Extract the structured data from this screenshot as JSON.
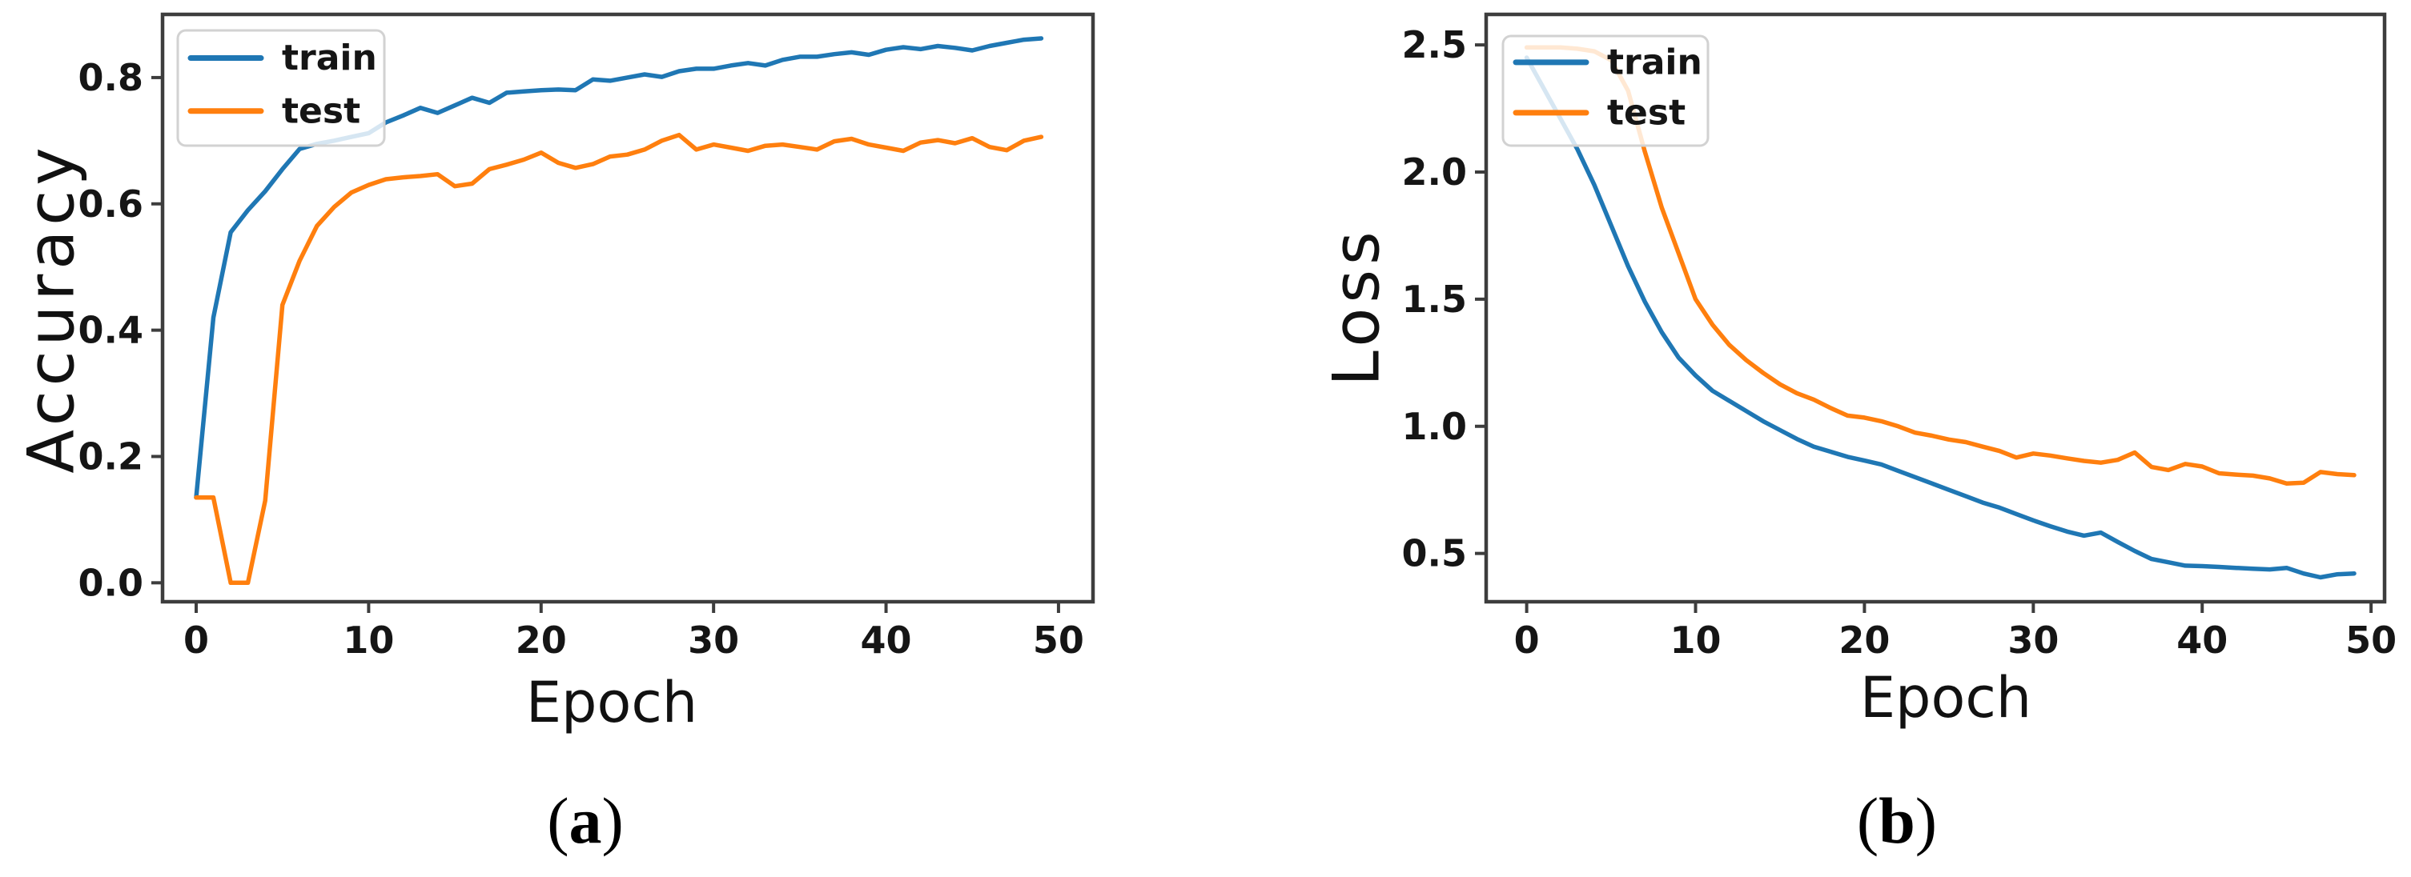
{
  "figure": {
    "background": "#ffffff",
    "panels": [
      {
        "caption": {
          "open": "(",
          "letter": "a",
          "close": ")"
        },
        "xlabel": "Epoch",
        "ylabel": "Accuracy"
      },
      {
        "caption": {
          "open": "(",
          "letter": "b",
          "close": ")"
        },
        "xlabel": "Epoch",
        "ylabel": "Loss"
      }
    ]
  },
  "colors": {
    "train": "#1f77b4",
    "test": "#ff7f0e",
    "spine": "#3d3d3d",
    "tick_text": "#151515",
    "legend_border": "#d2d2d2",
    "legend_fill": "#ffffff"
  },
  "chart_data": [
    {
      "type": "line",
      "title": "",
      "xlabel": "Epoch",
      "ylabel": "Accuracy",
      "caption": "(a)",
      "grid": false,
      "legend_position": "upper left",
      "x_epochs": {
        "start": 0,
        "step": 1,
        "count": 50
      },
      "xlim": [
        -1.95,
        52.0
      ],
      "ylim": [
        -0.03,
        0.9
      ],
      "xticks": [
        "0",
        "10",
        "20",
        "30",
        "40",
        "50"
      ],
      "yticks": [
        "0.0",
        "0.2",
        "0.4",
        "0.6",
        "0.8"
      ],
      "series": [
        {
          "name": "train",
          "color": "#1f77b4",
          "values": [
            0.135,
            0.42,
            0.555,
            0.59,
            0.62,
            0.655,
            0.687,
            0.695,
            0.7,
            0.706,
            0.712,
            0.729,
            0.74,
            0.752,
            0.744,
            0.756,
            0.768,
            0.76,
            0.776,
            0.778,
            0.78,
            0.781,
            0.78,
            0.797,
            0.795,
            0.8,
            0.805,
            0.801,
            0.81,
            0.814,
            0.814,
            0.819,
            0.823,
            0.819,
            0.828,
            0.833,
            0.833,
            0.837,
            0.84,
            0.836,
            0.844,
            0.848,
            0.845,
            0.85,
            0.847,
            0.843,
            0.85,
            0.855,
            0.86,
            0.862
          ]
        },
        {
          "name": "test",
          "color": "#ff7f0e",
          "values": [
            0.135,
            0.135,
            0.0,
            0.0,
            0.13,
            0.44,
            0.51,
            0.565,
            0.595,
            0.618,
            0.63,
            0.639,
            0.642,
            0.644,
            0.647,
            0.628,
            0.632,
            0.655,
            0.662,
            0.67,
            0.681,
            0.665,
            0.657,
            0.663,
            0.675,
            0.678,
            0.686,
            0.7,
            0.709,
            0.686,
            0.694,
            0.689,
            0.684,
            0.692,
            0.694,
            0.69,
            0.686,
            0.699,
            0.703,
            0.694,
            0.689,
            0.684,
            0.697,
            0.701,
            0.696,
            0.704,
            0.69,
            0.685,
            0.7,
            0.706
          ]
        }
      ]
    },
    {
      "type": "line",
      "title": "",
      "xlabel": "Epoch",
      "ylabel": "Loss",
      "caption": "(b)",
      "grid": false,
      "legend_position": "upper left",
      "x_epochs": {
        "start": 0,
        "step": 1,
        "count": 50
      },
      "xlim": [
        -2.4,
        50.8
      ],
      "ylim": [
        0.31,
        2.62
      ],
      "xticks": [
        "0",
        "10",
        "20",
        "30",
        "40",
        "50"
      ],
      "yticks": [
        "0.5",
        "1.0",
        "1.5",
        "2.0",
        "2.5"
      ],
      "series": [
        {
          "name": "train",
          "color": "#1f77b4",
          "values": [
            2.45,
            2.33,
            2.21,
            2.09,
            1.95,
            1.79,
            1.63,
            1.49,
            1.37,
            1.27,
            1.2,
            1.14,
            1.1,
            1.06,
            1.02,
            0.985,
            0.95,
            0.92,
            0.9,
            0.88,
            0.865,
            0.85,
            0.825,
            0.8,
            0.775,
            0.75,
            0.725,
            0.7,
            0.68,
            0.655,
            0.63,
            0.607,
            0.586,
            0.57,
            0.582,
            0.545,
            0.51,
            0.478,
            0.465,
            0.452,
            0.45,
            0.447,
            0.443,
            0.44,
            0.437,
            0.443,
            0.421,
            0.406,
            0.418,
            0.421
          ]
        },
        {
          "name": "test",
          "color": "#ff7f0e",
          "values": [
            2.49,
            2.49,
            2.49,
            2.485,
            2.475,
            2.44,
            2.32,
            2.08,
            1.86,
            1.68,
            1.5,
            1.4,
            1.32,
            1.26,
            1.21,
            1.165,
            1.13,
            1.105,
            1.072,
            1.042,
            1.034,
            1.02,
            1.0,
            0.975,
            0.963,
            0.948,
            0.938,
            0.92,
            0.903,
            0.877,
            0.893,
            0.885,
            0.874,
            0.864,
            0.857,
            0.868,
            0.897,
            0.84,
            0.828,
            0.852,
            0.842,
            0.815,
            0.81,
            0.806,
            0.795,
            0.775,
            0.778,
            0.82,
            0.812,
            0.808
          ]
        }
      ]
    }
  ]
}
